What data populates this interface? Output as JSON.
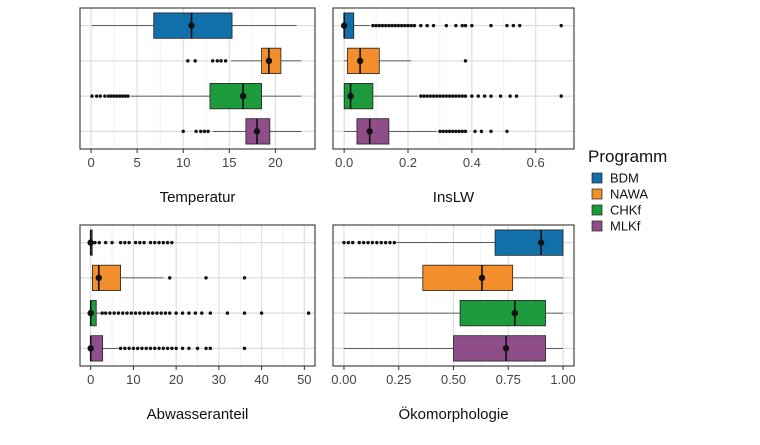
{
  "chart_data": [
    {
      "type": "boxplot",
      "xlabel": "Temperatur",
      "xlim": [
        -1.2,
        24.3
      ],
      "ticks": [
        0,
        5,
        10,
        15,
        20
      ],
      "tick_labels": [
        "0",
        "5",
        "10",
        "15",
        "20"
      ],
      "groups": [
        {
          "name": "BDM",
          "whisker_low": 0.1,
          "q1": 6.8,
          "median": 10.9,
          "q3": 15.3,
          "whisker_high": 22.3,
          "mean": 10.9,
          "outliers": []
        },
        {
          "name": "NAWA",
          "whisker_low": 15.2,
          "q1": 18.5,
          "median": 19.3,
          "q3": 20.6,
          "whisker_high": 22.8,
          "mean": 19.3,
          "outliers": [
            10.5,
            11.3,
            13.2,
            13.7,
            14.1,
            14.6
          ]
        },
        {
          "name": "CHKf",
          "whisker_low": 4.3,
          "q1": 12.9,
          "median": 16.5,
          "q3": 18.5,
          "whisker_high": 22.8,
          "mean": 16.5,
          "outliers": [
            0.1,
            0.6,
            1.0,
            1.5,
            1.9,
            2.2,
            2.5,
            2.8,
            3.1,
            3.4,
            3.7,
            4.0
          ]
        },
        {
          "name": "MLKf",
          "whisker_low": 13.2,
          "q1": 16.8,
          "median": 18.0,
          "q3": 19.4,
          "whisker_high": 22.8,
          "mean": 18.0,
          "outliers": [
            10.0,
            11.4,
            11.9,
            12.3,
            12.7
          ]
        }
      ]
    },
    {
      "type": "boxplot",
      "xlabel": "InsLW",
      "xlim": [
        -0.035,
        0.72
      ],
      "ticks": [
        0,
        0.2,
        0.4,
        0.6
      ],
      "tick_labels": [
        "0.0",
        "0.2",
        "0.4",
        "0.6"
      ],
      "groups": [
        {
          "name": "BDM",
          "whisker_low": 0.0,
          "q1": 0.0,
          "median": 0.0,
          "q3": 0.03,
          "whisker_high": 0.08,
          "mean": 0.0,
          "outliers": [
            0.09,
            0.1,
            0.11,
            0.12,
            0.13,
            0.14,
            0.15,
            0.16,
            0.17,
            0.18,
            0.19,
            0.2,
            0.21,
            0.22,
            0.24,
            0.26,
            0.28,
            0.32,
            0.35,
            0.37,
            0.38,
            0.4,
            0.46,
            0.51,
            0.53,
            0.55,
            0.68
          ]
        },
        {
          "name": "NAWA",
          "whisker_low": 0.0,
          "q1": 0.01,
          "median": 0.05,
          "q3": 0.11,
          "whisker_high": 0.21,
          "mean": 0.05,
          "outliers": [
            0.38
          ]
        },
        {
          "name": "CHKf",
          "whisker_low": 0.0,
          "q1": 0.0,
          "median": 0.02,
          "q3": 0.09,
          "whisker_high": 0.23,
          "mean": 0.02,
          "outliers": [
            0.24,
            0.25,
            0.26,
            0.27,
            0.28,
            0.29,
            0.3,
            0.31,
            0.32,
            0.33,
            0.34,
            0.35,
            0.36,
            0.37,
            0.38,
            0.4,
            0.42,
            0.44,
            0.46,
            0.49,
            0.52,
            0.54,
            0.68
          ]
        },
        {
          "name": "MLKf",
          "whisker_low": 0.0,
          "q1": 0.04,
          "median": 0.08,
          "q3": 0.14,
          "whisker_high": 0.29,
          "mean": 0.08,
          "outliers": [
            0.3,
            0.31,
            0.32,
            0.33,
            0.34,
            0.35,
            0.36,
            0.37,
            0.38,
            0.41,
            0.43,
            0.46,
            0.51
          ]
        }
      ]
    },
    {
      "type": "boxplot",
      "xlabel": "Abwasseranteil",
      "xlim": [
        -2.5,
        52.5
      ],
      "ticks": [
        0,
        10,
        20,
        30,
        40,
        50
      ],
      "tick_labels": [
        "0",
        "10",
        "20",
        "30",
        "40",
        "50"
      ],
      "groups": [
        {
          "name": "BDM",
          "whisker_low": 0.0,
          "q1": 0.0,
          "median": 0.0,
          "q3": 0.0,
          "whisker_high": 0.0,
          "mean": 0.0,
          "outliers": [
            0.3,
            1.0,
            2.0,
            3.5,
            5.0,
            7.0,
            8.0,
            9.0,
            10.5,
            11.5,
            12.5,
            14.0,
            15.0,
            16.0,
            17.0,
            18.0,
            19.0
          ]
        },
        {
          "name": "NAWA",
          "whisker_low": 0.0,
          "q1": 0.4,
          "median": 1.9,
          "q3": 7.0,
          "whisker_high": 17.0,
          "mean": 1.9,
          "outliers": [
            18.5,
            27.0,
            36.0
          ]
        },
        {
          "name": "CHKf",
          "whisker_low": 0.0,
          "q1": 0.0,
          "median": 0.0,
          "q3": 1.3,
          "whisker_high": 2.3,
          "mean": 0.0,
          "outliers": [
            2.7,
            3.5,
            4.5,
            5.5,
            6.5,
            7.5,
            8.5,
            9.5,
            10.5,
            11.5,
            12.5,
            13.5,
            14.5,
            15.5,
            16.5,
            17.5,
            18.5,
            20.0,
            21.5,
            23.0,
            24.5,
            26.0,
            28.0,
            32.0,
            36.0,
            40.0,
            51.0
          ]
        },
        {
          "name": "MLKf",
          "whisker_low": 0.0,
          "q1": 0.0,
          "median": 0.0,
          "q3": 2.8,
          "whisker_high": 6.5,
          "mean": 0.0,
          "outliers": [
            7.0,
            8.0,
            9.0,
            10.0,
            11.0,
            12.0,
            13.0,
            14.0,
            15.0,
            16.0,
            17.0,
            18.0,
            19.0,
            20.0,
            21.5,
            23.0,
            25.0,
            27.0,
            28.0,
            36.0
          ]
        }
      ]
    },
    {
      "type": "boxplot",
      "xlabel": "Ökomorphologie",
      "xlim": [
        -0.05,
        1.05
      ],
      "ticks": [
        0,
        0.25,
        0.5,
        0.75,
        1.0
      ],
      "tick_labels": [
        "0.00",
        "0.25",
        "0.50",
        "0.75",
        "1.00"
      ],
      "groups": [
        {
          "name": "BDM",
          "whisker_low": 0.24,
          "q1": 0.69,
          "median": 0.9,
          "q3": 1.0,
          "whisker_high": 1.0,
          "mean": 0.9,
          "outliers": [
            0.0,
            0.02,
            0.04,
            0.07,
            0.09,
            0.11,
            0.13,
            0.15,
            0.17,
            0.19,
            0.21,
            0.23
          ]
        },
        {
          "name": "NAWA",
          "whisker_low": 0.0,
          "q1": 0.36,
          "median": 0.63,
          "q3": 0.77,
          "whisker_high": 1.0,
          "mean": 0.63,
          "outliers": []
        },
        {
          "name": "CHKf",
          "whisker_low": 0.0,
          "q1": 0.53,
          "median": 0.78,
          "q3": 0.92,
          "whisker_high": 1.0,
          "mean": 0.78,
          "outliers": []
        },
        {
          "name": "MLKf",
          "whisker_low": 0.0,
          "q1": 0.5,
          "median": 0.74,
          "q3": 0.92,
          "whisker_high": 1.0,
          "mean": 0.74,
          "outliers": []
        }
      ]
    }
  ],
  "legend": {
    "title": "Programm",
    "placement": "right",
    "items": [
      {
        "label": "BDM",
        "color": "#1170aa"
      },
      {
        "label": "NAWA",
        "color": "#f28e2b"
      },
      {
        "label": "CHKf",
        "color": "#1d9a3c"
      },
      {
        "label": "MLKf",
        "color": "#8f4e8a"
      }
    ]
  }
}
